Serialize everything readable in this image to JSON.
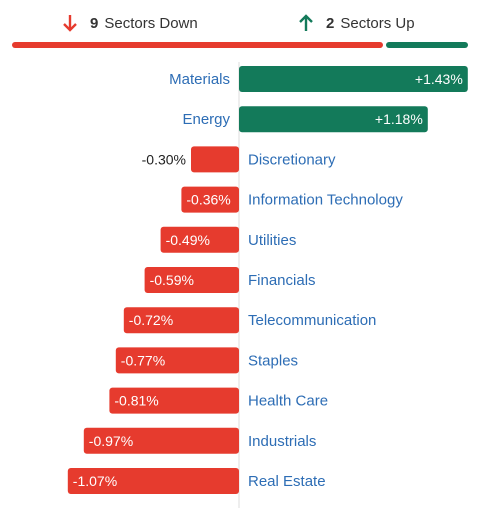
{
  "summary": {
    "down_count": "9",
    "down_label": "Sectors Down",
    "up_count": "2",
    "up_label": "Sectors Up",
    "down_color": "#e63b2e",
    "up_color": "#137a5a"
  },
  "chart_data": {
    "type": "bar",
    "orientation": "horizontal-diverging",
    "categories": [
      "Materials",
      "Energy",
      "Discretionary",
      "Information Technology",
      "Utilities",
      "Financials",
      "Telecommunication",
      "Staples",
      "Health Care",
      "Industrials",
      "Real Estate"
    ],
    "values": [
      1.43,
      1.18,
      -0.3,
      -0.36,
      -0.49,
      -0.59,
      -0.72,
      -0.77,
      -0.81,
      -0.97,
      -1.07
    ],
    "value_labels": [
      "+1.43%",
      "+1.18%",
      "-0.30%",
      "-0.36%",
      "-0.49%",
      "-0.59%",
      "-0.72%",
      "-0.77%",
      "-0.81%",
      "-0.97%",
      "-1.07%"
    ],
    "positive_color": "#137a5a",
    "negative_color": "#e63b2e",
    "label_color": "#2d6db5"
  }
}
